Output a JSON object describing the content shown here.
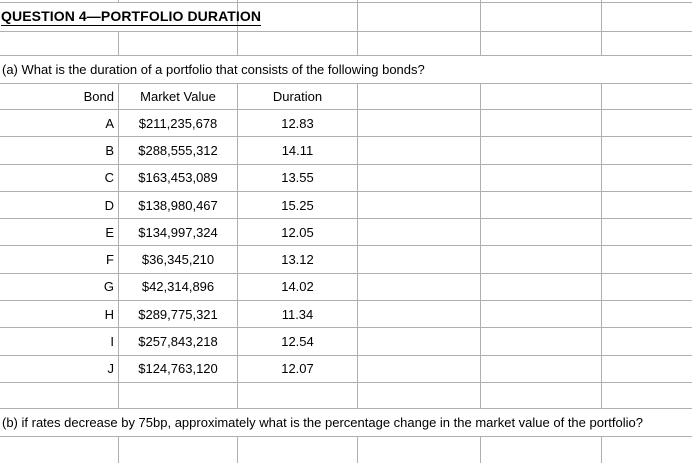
{
  "title": "QUESTION 4—PORTFOLIO DURATION",
  "question_a": "(a) What is the duration of a portfolio that consists of the following bonds?",
  "question_b": "(b) if rates decrease by 75bp, approximately what is the percentage change in the market value of the portfolio?",
  "table": {
    "headers": {
      "bond": "Bond",
      "market_value": "Market Value",
      "duration": "Duration"
    },
    "rows": [
      {
        "bond": "A",
        "market_value": "$211,235,678",
        "duration": "12.83"
      },
      {
        "bond": "B",
        "market_value": "$288,555,312",
        "duration": "14.11"
      },
      {
        "bond": "C",
        "market_value": "$163,453,089",
        "duration": "13.55"
      },
      {
        "bond": "D",
        "market_value": "$138,980,467",
        "duration": "15.25"
      },
      {
        "bond": "E",
        "market_value": "$134,997,324",
        "duration": "12.05"
      },
      {
        "bond": "F",
        "market_value": "$36,345,210",
        "duration": "13.12"
      },
      {
        "bond": "G",
        "market_value": "$42,314,896",
        "duration": "14.02"
      },
      {
        "bond": "H",
        "market_value": "$289,775,321",
        "duration": "11.34"
      },
      {
        "bond": "I",
        "market_value": "$257,843,218",
        "duration": "12.54"
      },
      {
        "bond": "J",
        "market_value": "$124,763,120",
        "duration": "12.07"
      }
    ]
  },
  "colors": {
    "gridline": "#b0b0b0",
    "text": "#000000",
    "background": "#ffffff"
  }
}
